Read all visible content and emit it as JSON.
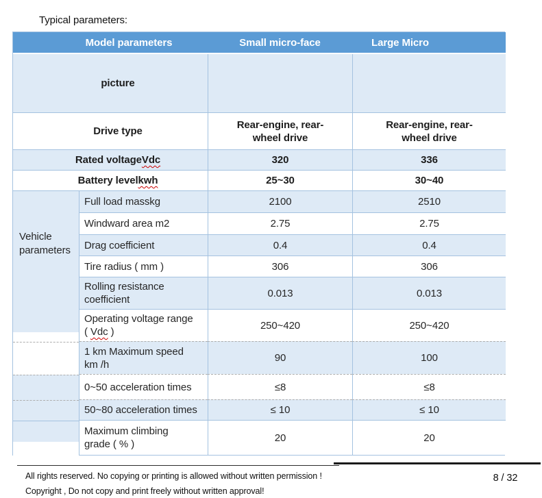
{
  "page": {
    "title": "Typical parameters:"
  },
  "colors": {
    "header_blue": "#5B9BD5",
    "row_blue": "#DEEAF6",
    "border_blue": "#A4C2E0",
    "spellcheck_red": "#CC0000",
    "header_text": "#FFFFFF"
  },
  "table": {
    "header": {
      "model": "Model parameters",
      "small": "Small micro-face",
      "large": "Large Micro"
    },
    "picture_row": {
      "label": "picture",
      "small": "",
      "large": ""
    },
    "drive_row": {
      "label": "Drive type",
      "small": "Rear-engine, rear-\nwheel drive",
      "large": "Rear-engine, rear-\nwheel drive"
    },
    "rated_row": {
      "label_pre": "Rated voltage",
      "label_wavy": "Vdc",
      "small": "320",
      "large": "336"
    },
    "battery_row": {
      "label_pre": "Battery level",
      "label_wavy": "kwh",
      "small": "25~30",
      "large": "30~40"
    },
    "spanner_label": "Vehicle\nparameters",
    "param_rows": [
      {
        "label": "Full load masskg",
        "small": "2100",
        "large": "2510"
      },
      {
        "label": "Windward area m2",
        "small": "2.75",
        "large": "2.75"
      },
      {
        "label": "Drag coefficient",
        "small": "0.4",
        "large": "0.4"
      },
      {
        "label": "Tire radius ( mm )",
        "small": "306",
        "large": "306"
      },
      {
        "label": "Rolling resistance\ncoefficient",
        "small": "0.013",
        "large": "0.013"
      },
      {
        "label_pre": "Operating voltage range\n( ",
        "label_wavy": "Vdc",
        "label_post": " )",
        "small": "250~420",
        "large": "250~420"
      },
      {
        "label": "1 km Maximum speed\nkm /h",
        "small": "90",
        "large": "100"
      },
      {
        "label": "0~50 acceleration times",
        "small": "≤8",
        "large": "≤8"
      },
      {
        "label": "50~80 acceleration times",
        "small": "≤ 10",
        "large": "≤ 10"
      },
      {
        "label": "Maximum climbing\ngrade ( % )",
        "small": "20",
        "large": "20"
      }
    ]
  },
  "footer": {
    "line1": "All rights reserved. No copying or printing is allowed without written permission !",
    "line2": "Copyright , Do not copy and print freely without written approval!",
    "page_number": "8 / 32"
  }
}
